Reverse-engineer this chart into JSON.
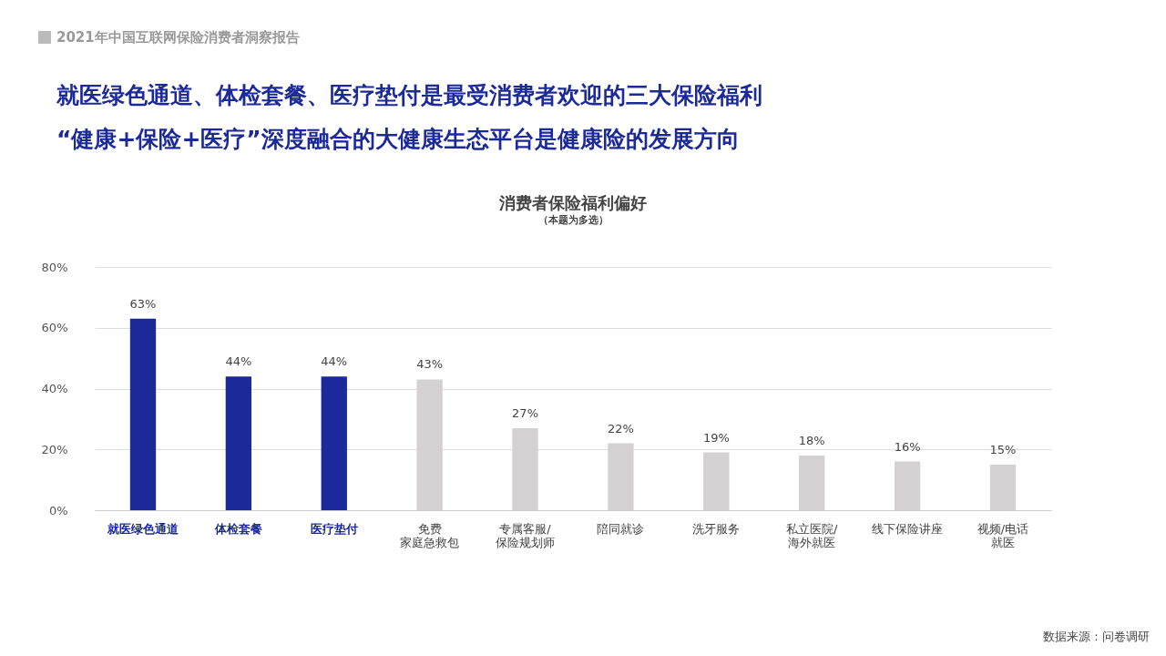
{
  "chart_data": {
    "type": "bar",
    "title": "消费者保险福利偏好",
    "subtitle": "（本题为多选）",
    "annotations": [
      "2021年中国互联网保险消费者洞察报告",
      "就医绿色通道、体检套餐、医疗垫付是最受消费者欢迎的三大保险福利",
      "“健康+保险+医疗”深度融合的大健康生态平台是健康险的发展方向",
      "数据来源：问卷调研"
    ],
    "categories": [
      "就医绿色通道",
      "体检套餐",
      "医疗垫付",
      "免费家庭急救包",
      "专属客服/保险规划师",
      "陪同就诊",
      "洗牙服务",
      "私立医院/海外就医",
      "线下保险讲座",
      "视频/电话就医"
    ],
    "values": [
      63,
      44,
      44,
      43,
      27,
      22,
      19,
      18,
      16,
      15
    ],
    "value_labels": [
      "63%",
      "44%",
      "44%",
      "43%",
      "27%",
      "22%",
      "19%",
      "18%",
      "16%",
      "15%"
    ],
    "colors": [
      "#1c2a99",
      "#1c2a99",
      "#1c2a99",
      "#d3d1d1",
      "#d3d1d1",
      "#d3d1d1",
      "#d3d1d1",
      "#d3d1d1",
      "#d3d1d1",
      "#d3d1d1"
    ],
    "ylim": [
      0,
      80
    ],
    "yticks": [
      {
        "value": 0,
        "label": "0%"
      },
      {
        "value": 20,
        "label": "20%"
      },
      {
        "value": 40,
        "label": "40%"
      },
      {
        "value": 60,
        "label": "60%"
      },
      {
        "value": 80,
        "label": "80%"
      }
    ],
    "grid": "y"
  }
}
